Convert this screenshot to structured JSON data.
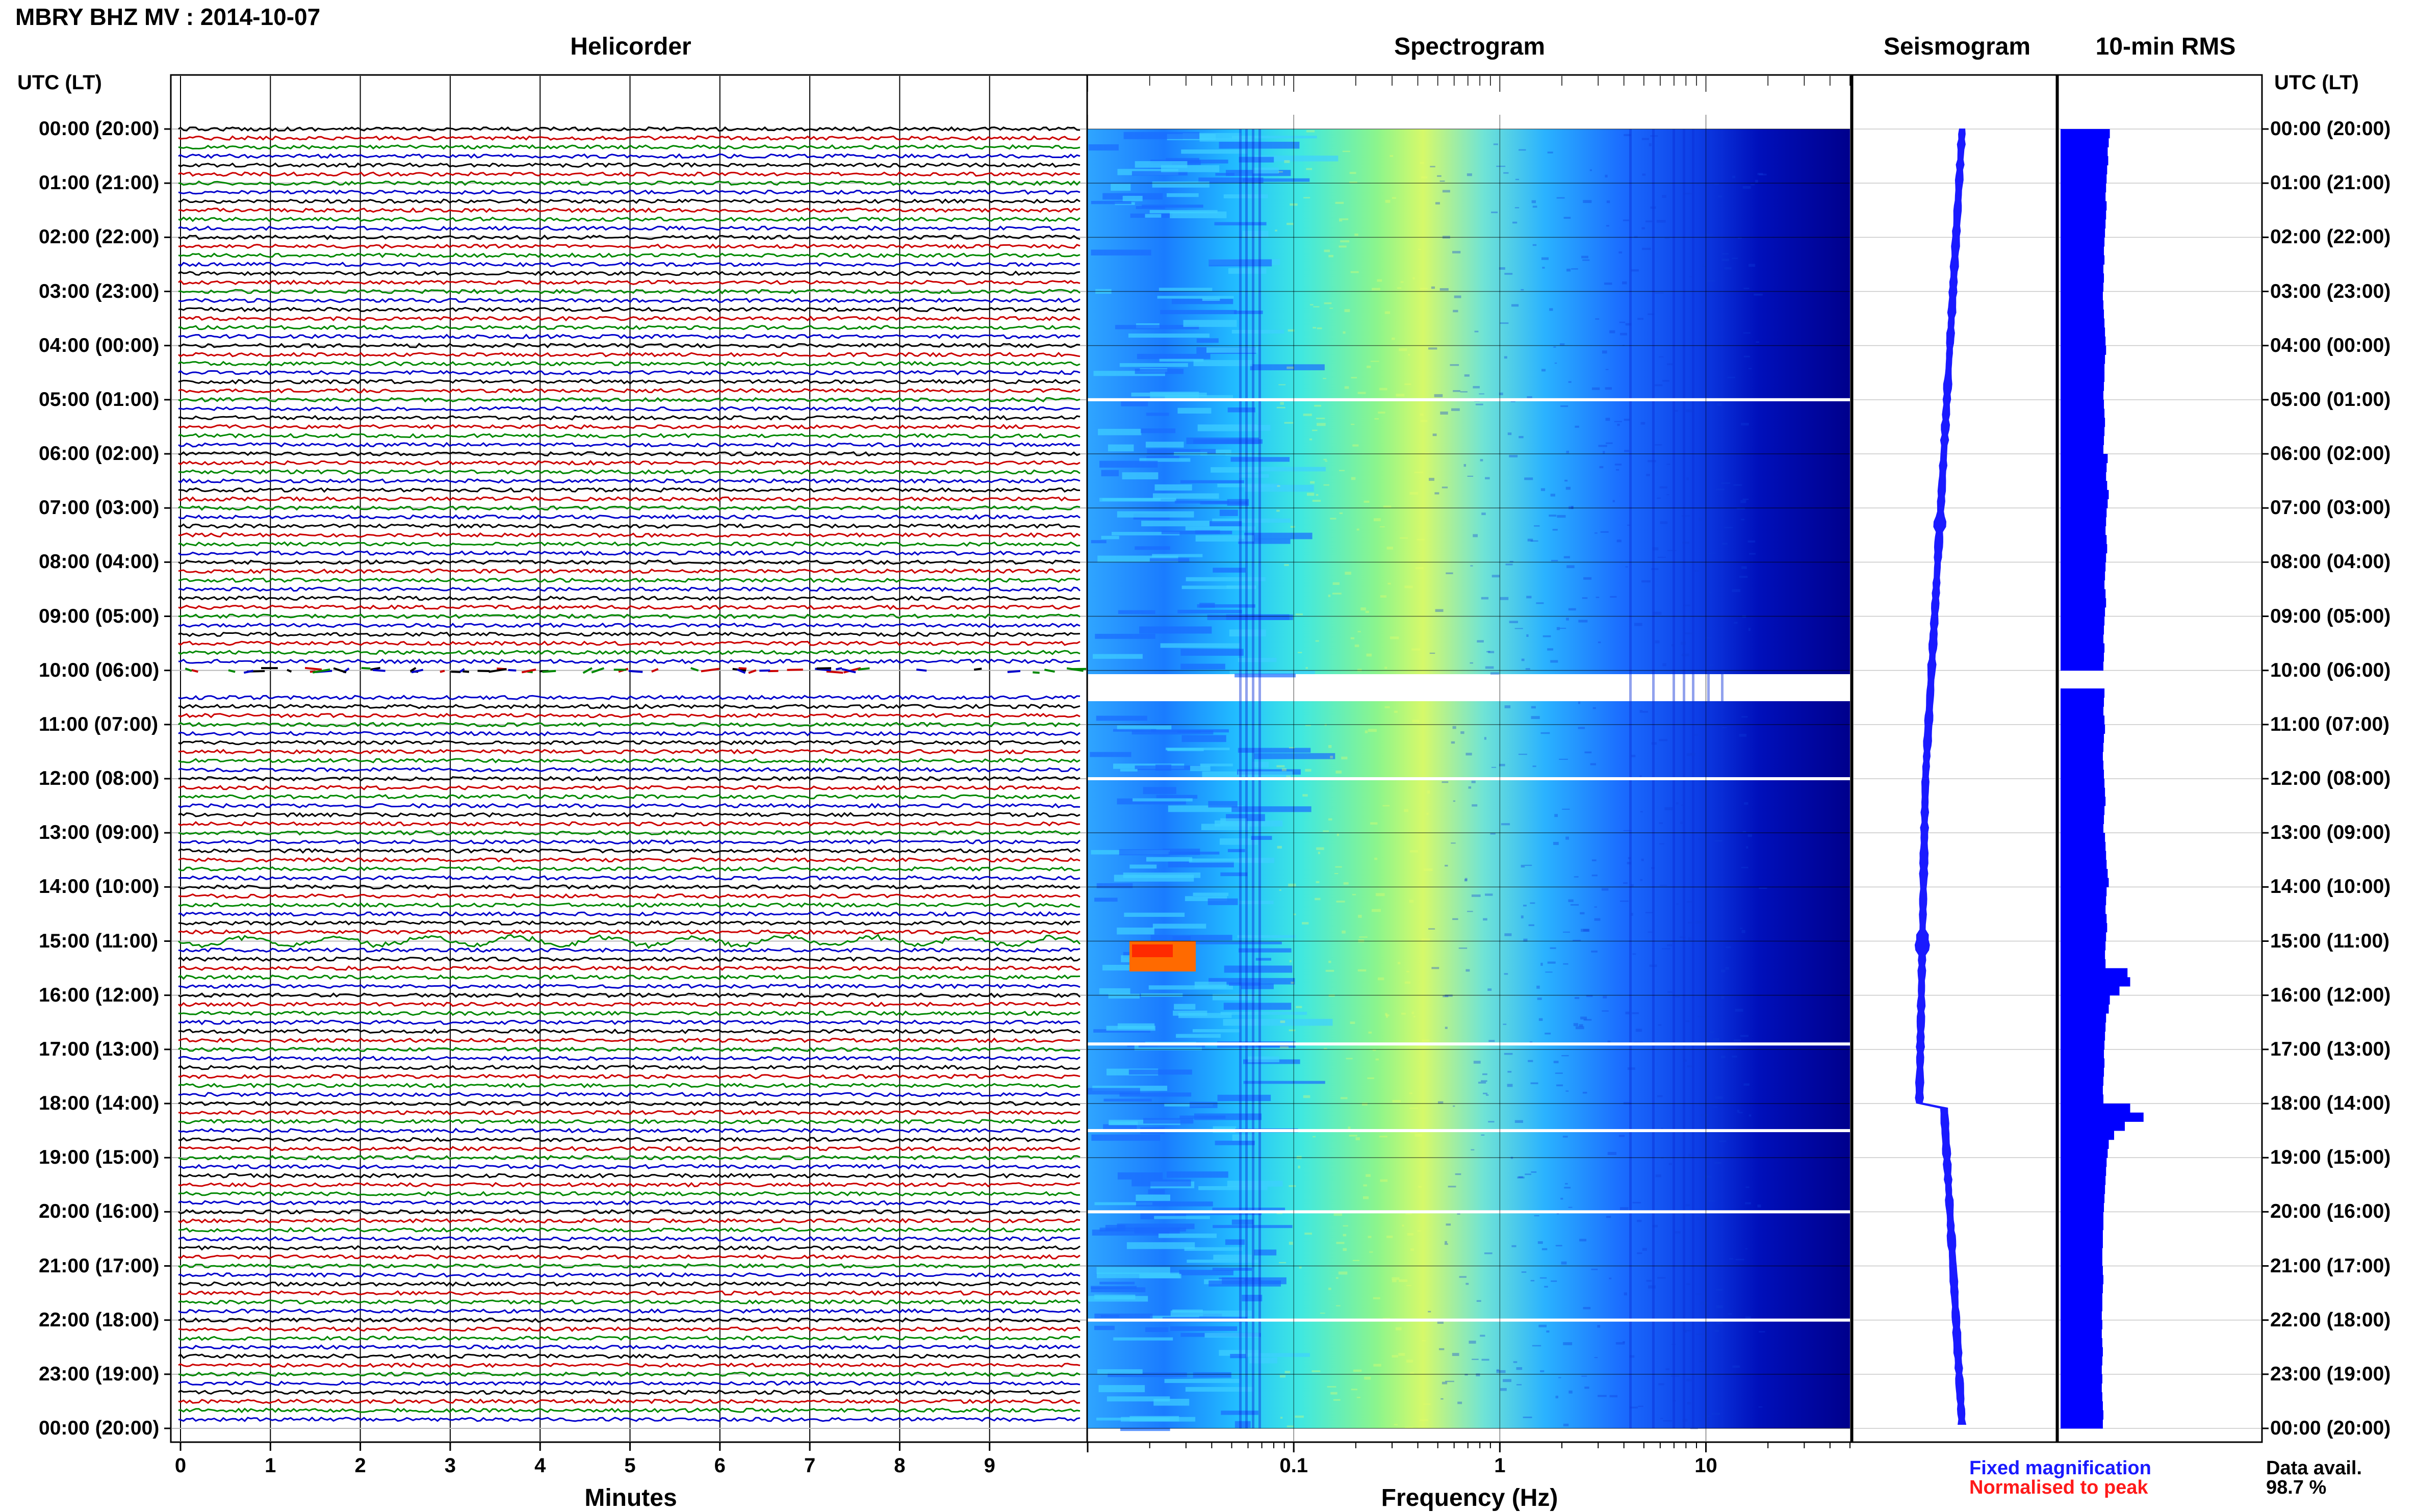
{
  "header": {
    "station_title": "MBRY BHZ MV : 2014-10-07",
    "utc_label_left": "UTC (LT)",
    "utc_label_right": "UTC (LT)"
  },
  "panels": {
    "helicorder": "Helicorder",
    "spectrogram": "Spectrogram",
    "seismogram": "Seismogram",
    "rms": "10-min RMS"
  },
  "hour_labels": [
    "00:00 (20:00)",
    "01:00 (21:00)",
    "02:00 (22:00)",
    "03:00 (23:00)",
    "04:00 (00:00)",
    "05:00 (01:00)",
    "06:00 (02:00)",
    "07:00 (03:00)",
    "08:00 (04:00)",
    "09:00 (05:00)",
    "10:00 (06:00)",
    "11:00 (07:00)",
    "12:00 (08:00)",
    "13:00 (09:00)",
    "14:00 (10:00)",
    "15:00 (11:00)",
    "16:00 (12:00)",
    "17:00 (13:00)",
    "18:00 (14:00)",
    "19:00 (15:00)",
    "20:00 (16:00)",
    "21:00 (17:00)",
    "22:00 (18:00)",
    "23:00 (19:00)",
    "00:00 (20:00)"
  ],
  "axes": {
    "minutes_title": "Minutes",
    "minutes_ticks": [
      "0",
      "1",
      "2",
      "3",
      "4",
      "5",
      "6",
      "7",
      "8",
      "9"
    ],
    "freq_title": "Frequency (Hz)",
    "freq_ticks": [
      "0.1",
      "1",
      "10"
    ]
  },
  "legend": {
    "fixed": "Fixed magnification",
    "normalised": "Normalised to peak"
  },
  "availability": {
    "label": "Data avail.",
    "value": "98.7 %"
  },
  "colors": {
    "trace_cycle": [
      "#000000",
      "#cc0000",
      "#008800",
      "#0000cc"
    ],
    "rms_bar": "#0000ff",
    "seismogram": "#1a1aff",
    "spectrogram_scale": [
      "#000080",
      "#0000ff",
      "#0080ff",
      "#00ffff",
      "#80ff80",
      "#ffff00",
      "#ff8000",
      "#ff0000"
    ]
  },
  "chart_data": [
    {
      "type": "helicorder",
      "title": "Helicorder",
      "xlabel": "Minutes",
      "xlim": [
        0,
        10
      ],
      "lines_per_hour": 6,
      "hours": 24,
      "data_gap_hours": [
        10.0,
        10.5
      ],
      "notable_events_hour": [
        7.0,
        15.0
      ]
    },
    {
      "type": "heatmap",
      "title": "Spectrogram",
      "xlabel": "Frequency (Hz)",
      "xscale": "log",
      "xlim": [
        0.01,
        50
      ],
      "gap_hours": [
        10.0,
        10.5
      ],
      "thin_gaps_hours": [
        5.0,
        12.0,
        16.9,
        18.5,
        20.0,
        22.0
      ],
      "energy_peak_hz": 0.3,
      "event": {
        "hour": 15.1,
        "freq_range_hz": [
          0.03,
          0.07
        ],
        "level": "high"
      }
    },
    {
      "type": "line",
      "title": "Seismogram",
      "hours": 24
    },
    {
      "type": "bar",
      "title": "10-min RMS",
      "hours": 24,
      "values_relative": [
        0.92,
        0.9,
        0.88,
        0.89,
        0.87,
        0.86,
        0.85,
        0.84,
        0.86,
        0.85,
        0.84,
        0.83,
        0.82,
        0.81,
        0.82,
        0.8,
        0.81,
        0.8,
        0.79,
        0.8,
        0.81,
        0.82,
        0.83,
        0.84,
        0.85,
        0.83,
        0.82,
        0.82,
        0.81,
        0.8,
        0.81,
        0.82,
        0.83,
        0.82,
        0.81,
        0.8,
        0.88,
        0.86,
        0.85,
        0.87,
        0.9,
        0.88,
        0.86,
        0.85,
        0.84,
        0.86,
        0.87,
        0.85,
        0.84,
        0.83,
        0.82,
        0.84,
        0.85,
        0.83,
        0.82,
        0.81,
        0.8,
        0.82,
        0.81,
        0.8,
        0,
        0,
        0.82,
        0.81,
        0.8,
        0.82,
        0.83,
        0.81,
        0.8,
        0.79,
        0.8,
        0.81,
        0.82,
        0.83,
        0.84,
        0.82,
        0.81,
        0.8,
        0.83,
        0.84,
        0.85,
        0.86,
        0.88,
        0.9,
        0.86,
        0.85,
        0.84,
        0.86,
        0.87,
        0.85,
        0.84,
        0.83,
        0.84,
        1.25,
        1.3,
        1.1,
        0.92,
        0.9,
        0.85,
        0.84,
        0.83,
        0.82,
        0.81,
        0.82,
        0.81,
        0.8,
        0.79,
        0.8,
        1.3,
        1.55,
        1.2,
        1.0,
        0.9,
        0.88,
        0.86,
        0.85,
        0.84,
        0.83,
        0.82,
        0.81,
        0.8,
        0.8,
        0.79,
        0.79,
        0.78,
        0.78,
        0.79,
        0.8,
        0.79,
        0.78,
        0.78,
        0.77,
        0.78,
        0.77,
        0.78,
        0.79,
        0.78,
        0.77,
        0.78,
        0.77,
        0.78,
        0.79,
        0.8,
        0.79
      ]
    }
  ]
}
